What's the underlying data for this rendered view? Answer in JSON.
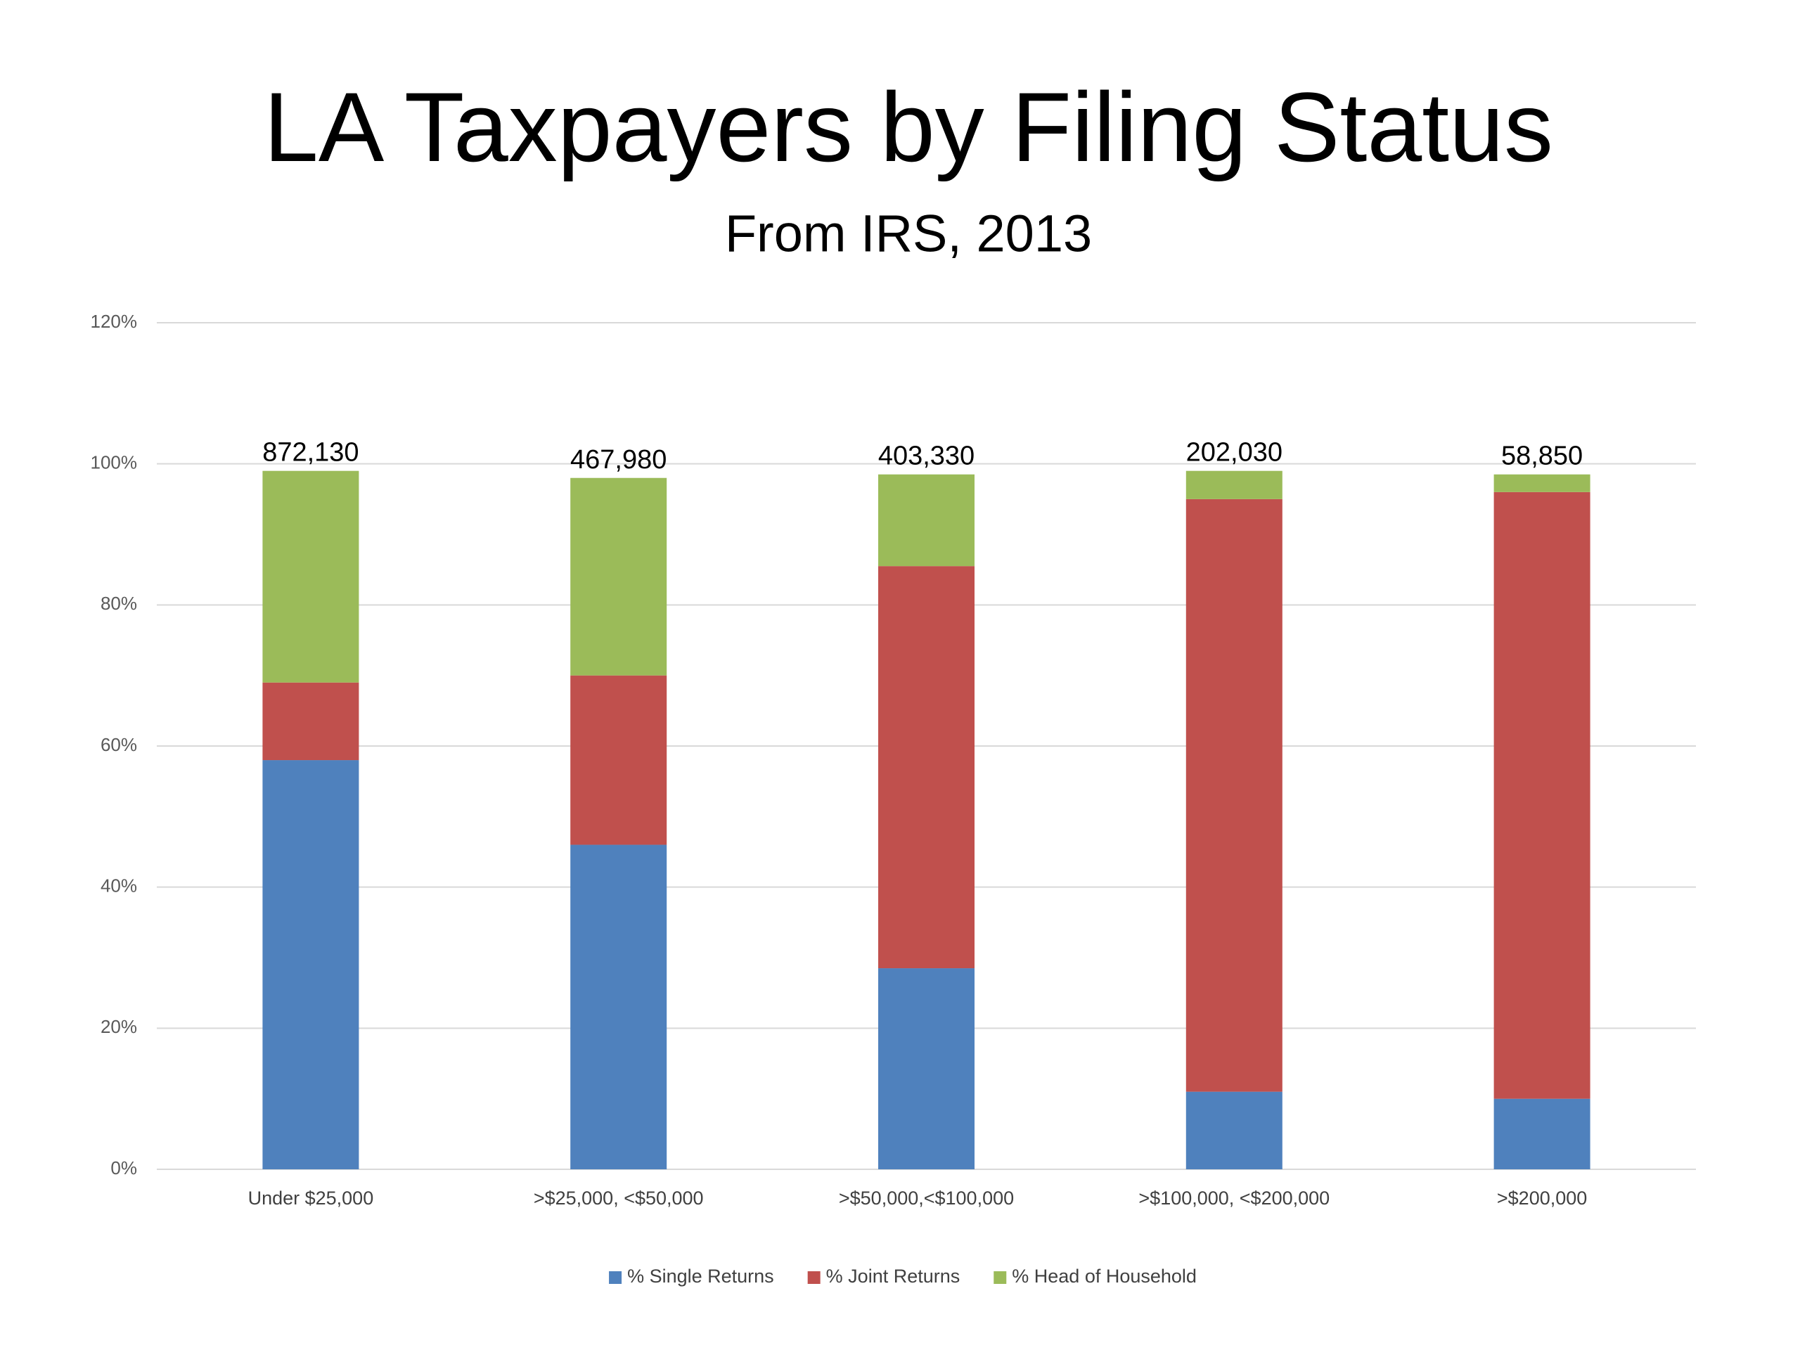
{
  "chart_data": {
    "type": "stacked_bar",
    "title": "LA Taxpayers by Filing Status",
    "subtitle": "From IRS, 2013",
    "categories": [
      "Under $25,000",
      ">$25,000, <$50,000",
      ">$50,000,<$100,000",
      ">$100,000, <$200,000",
      ">$200,000"
    ],
    "series": [
      {
        "name": "% Single Returns",
        "color": "#4f81bd",
        "values": [
          58,
          46,
          28.5,
          11,
          10
        ]
      },
      {
        "name": "% Joint Returns",
        "color": "#c0504d",
        "values": [
          11,
          24,
          57,
          84,
          86
        ]
      },
      {
        "name": "% Head of Household",
        "color": "#9bbb59",
        "values": [
          30,
          28,
          13,
          4,
          2.5
        ]
      }
    ],
    "annotations": [
      "872,130",
      "467,980",
      "403,330",
      "202,030",
      "58,850"
    ],
    "ylim": [
      0,
      120
    ],
    "yticks": [
      {
        "value": 0,
        "label": "0%"
      },
      {
        "value": 20,
        "label": "20%"
      },
      {
        "value": 40,
        "label": "40%"
      },
      {
        "value": 60,
        "label": "60%"
      },
      {
        "value": 80,
        "label": "80%"
      },
      {
        "value": 100,
        "label": "100%"
      },
      {
        "value": 120,
        "label": "120%"
      }
    ],
    "grid": true,
    "legend": "bottom"
  }
}
